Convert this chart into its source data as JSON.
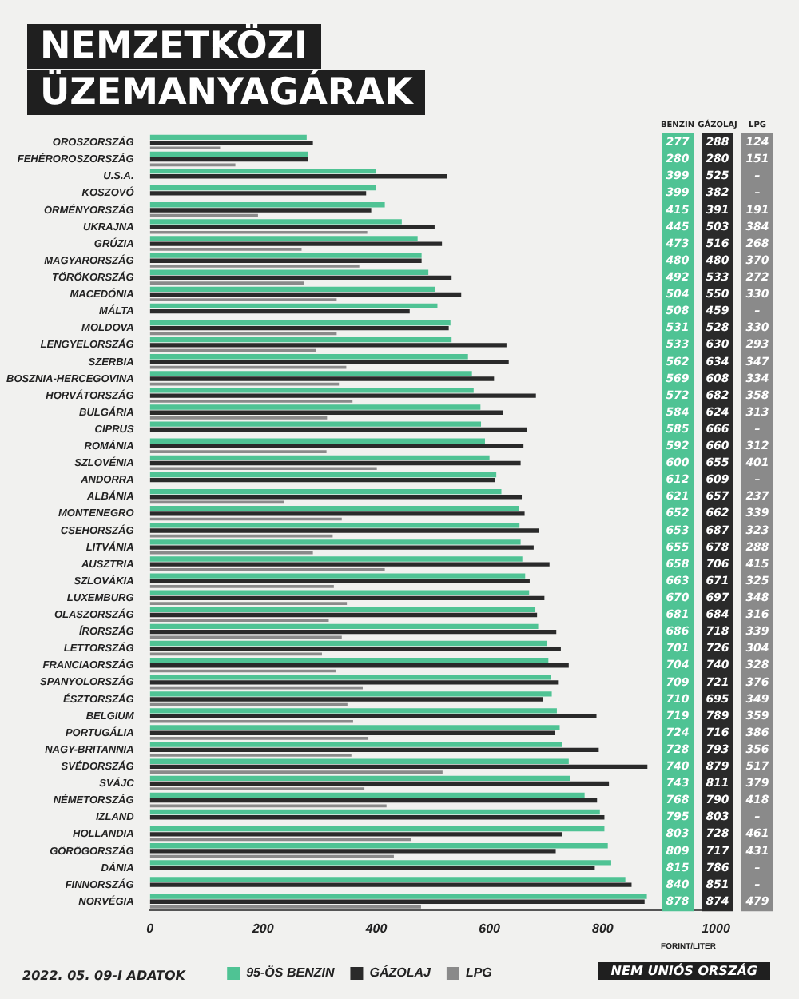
{
  "chart_data": {
    "type": "bar",
    "orientation": "horizontal",
    "title": "NEMZETKÖZI ÜZEMANYAGÁRAK",
    "xlabel": "FORINT/LITER",
    "categories": [
      "OROSZORSZÁG",
      "FEHÉROROSZORSZÁG",
      "U.S.A.",
      "KOSZOVÓ",
      "ÖRMÉNYORSZÁG",
      "UKRAJNA",
      "GRÚZIA",
      "MAGYARORSZÁG",
      "TÖRÖKORSZÁG",
      "MACEDÓNIA",
      "MÁLTA",
      "MOLDOVA",
      "LENGYELORSZÁG",
      "SZERBIA",
      "BOSZNIA-HERCEGOVINA",
      "HORVÁTORSZÁG",
      "BULGÁRIA",
      "CIPRUS",
      "ROMÁNIA",
      "SZLOVÉNIA",
      "ANDORRA",
      "ALBÁNIA",
      "MONTENEGRO",
      "CSEHORSZÁG",
      "LITVÁNIA",
      "AUSZTRIA",
      "SZLOVÁKIA",
      "LUXEMBURG",
      "OLASZORSZÁG",
      "ÍRORSZÁG",
      "LETTORSZÁG",
      "FRANCIAORSZÁG",
      "SPANYOLORSZÁG",
      "ÉSZTORSZÁG",
      "BELGIUM",
      "PORTUGÁLIA",
      "NAGY-BRITANNIA",
      "SVÉDORSZÁG",
      "SVÁJC",
      "NÉMETORSZÁG",
      "IZLAND",
      "HOLLANDIA",
      "GÖRÖGORSZÁG",
      "DÁNIA",
      "FINNORSZÁG",
      "NORVÉGIA"
    ],
    "series": [
      {
        "name": "95-ÖS BENZIN",
        "color": "#4fc394",
        "values": [
          277,
          280,
          399,
          399,
          415,
          445,
          473,
          480,
          492,
          504,
          508,
          531,
          533,
          562,
          569,
          572,
          584,
          585,
          592,
          600,
          612,
          621,
          652,
          653,
          655,
          658,
          663,
          670,
          681,
          686,
          701,
          704,
          709,
          710,
          719,
          724,
          728,
          740,
          743,
          768,
          795,
          803,
          809,
          815,
          840,
          878
        ]
      },
      {
        "name": "GÁZOLAJ",
        "color": "#2a2a2a",
        "values": [
          288,
          280,
          525,
          382,
          391,
          503,
          516,
          480,
          533,
          550,
          459,
          528,
          630,
          634,
          608,
          682,
          624,
          666,
          660,
          655,
          609,
          657,
          662,
          687,
          678,
          706,
          671,
          697,
          684,
          718,
          726,
          740,
          721,
          695,
          789,
          716,
          793,
          879,
          811,
          790,
          803,
          728,
          717,
          786,
          851,
          874
        ]
      },
      {
        "name": "LPG",
        "color": "#8a8a8a",
        "values": [
          124,
          151,
          null,
          null,
          191,
          384,
          268,
          370,
          272,
          330,
          null,
          330,
          293,
          347,
          334,
          358,
          313,
          null,
          312,
          401,
          null,
          237,
          339,
          323,
          288,
          415,
          325,
          348,
          316,
          339,
          304,
          328,
          376,
          349,
          359,
          386,
          356,
          517,
          379,
          418,
          null,
          461,
          431,
          null,
          null,
          479
        ],
        "value_labels": [
          "124",
          "151",
          "–",
          "–",
          "191",
          "384",
          "268",
          "370",
          "272",
          "330",
          "–",
          "330",
          "293",
          "347",
          "334",
          "358",
          "313",
          "–",
          "312",
          "401",
          "–",
          "237",
          "339",
          "323",
          "288",
          "415",
          "325",
          "348",
          "316",
          "339",
          "304",
          "328",
          "376",
          "349",
          "359",
          "386",
          "356",
          "517",
          "379",
          "418",
          "–",
          "461",
          "431",
          "–",
          "–",
          "479"
        ]
      }
    ],
    "xlim": [
      0,
      1000
    ],
    "xticks": [
      0,
      200,
      400,
      600,
      800,
      1000
    ],
    "grid": false,
    "legend": "bottom",
    "data_labels": true,
    "annotations": [
      "BENZIN",
      "GÁZOLAJ",
      "LPG",
      "NEM UNIÓS ORSZÁG",
      "2022. 05. 09-I ADATOK"
    ]
  }
}
